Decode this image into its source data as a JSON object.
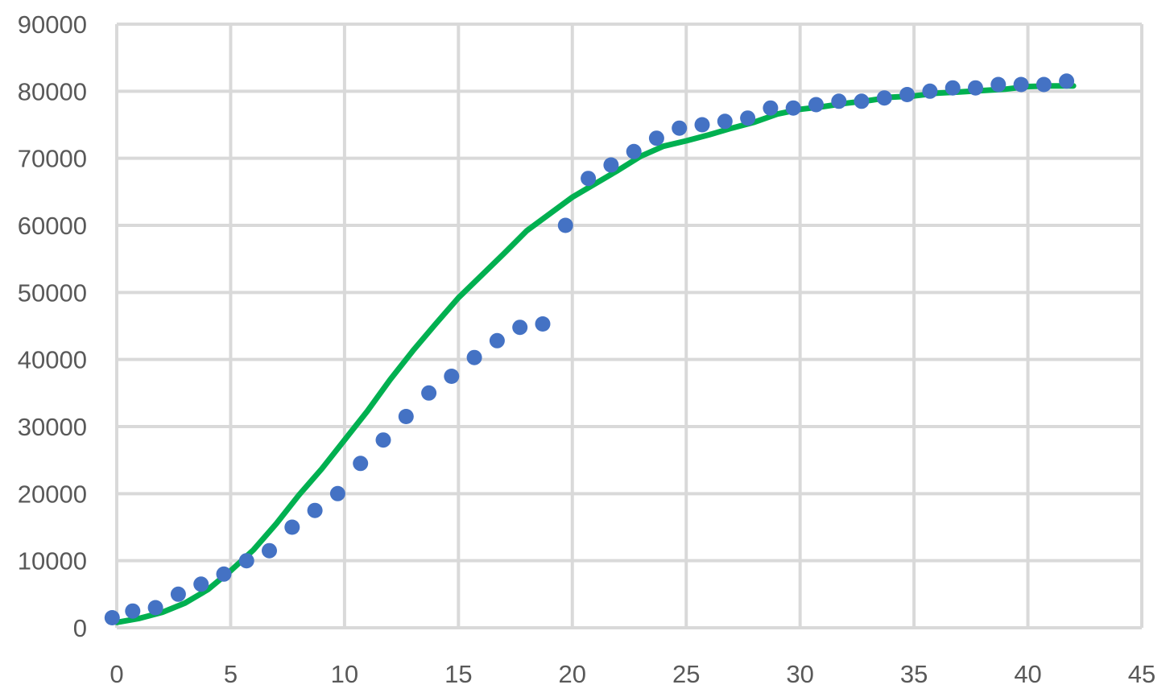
{
  "chart_data": {
    "type": "scatter",
    "title": "",
    "xlabel": "",
    "ylabel": "",
    "xlim": [
      0,
      45
    ],
    "ylim": [
      0,
      90000
    ],
    "grid": true,
    "legend": "none",
    "x_ticks": [
      "0",
      "5",
      "10",
      "15",
      "20",
      "25",
      "30",
      "35",
      "40",
      "45"
    ],
    "y_ticks": [
      "0",
      "10000",
      "20000",
      "30000",
      "40000",
      "50000",
      "60000",
      "70000",
      "80000",
      "90000"
    ],
    "series": [
      {
        "kind": "scatter",
        "color": "#4472C4",
        "points": [
          [
            -0.2,
            1500
          ],
          [
            0.7,
            2500
          ],
          [
            1.7,
            3000
          ],
          [
            2.7,
            5000
          ],
          [
            3.7,
            6500
          ],
          [
            4.7,
            8000
          ],
          [
            5.7,
            10000
          ],
          [
            6.7,
            11500
          ],
          [
            7.7,
            15000
          ],
          [
            8.7,
            17500
          ],
          [
            9.7,
            20000
          ],
          [
            10.7,
            24500
          ],
          [
            11.7,
            28000
          ],
          [
            12.7,
            31500
          ],
          [
            13.7,
            35000
          ],
          [
            14.7,
            37500
          ],
          [
            15.7,
            40300
          ],
          [
            16.7,
            42800
          ],
          [
            17.7,
            44800
          ],
          [
            18.7,
            45300
          ],
          [
            19.7,
            60000
          ],
          [
            20.7,
            67000
          ],
          [
            21.7,
            69000
          ],
          [
            22.7,
            71000
          ],
          [
            23.7,
            73000
          ],
          [
            24.7,
            74500
          ],
          [
            25.7,
            75000
          ],
          [
            26.7,
            75500
          ],
          [
            27.7,
            76000
          ],
          [
            28.7,
            77500
          ],
          [
            29.7,
            77500
          ],
          [
            30.7,
            78000
          ],
          [
            31.7,
            78500
          ],
          [
            32.7,
            78500
          ],
          [
            33.7,
            79000
          ],
          [
            34.7,
            79500
          ],
          [
            35.7,
            80000
          ],
          [
            36.7,
            80500
          ],
          [
            37.7,
            80500
          ],
          [
            38.7,
            81000
          ],
          [
            39.7,
            81000
          ],
          [
            40.7,
            81000
          ],
          [
            41.7,
            81500
          ]
        ]
      },
      {
        "kind": "line",
        "color": "#00B050",
        "points": [
          [
            0,
            800
          ],
          [
            1,
            1400
          ],
          [
            2,
            2300
          ],
          [
            3,
            3700
          ],
          [
            4,
            5700
          ],
          [
            5,
            8500
          ],
          [
            6,
            11600
          ],
          [
            7,
            15500
          ],
          [
            8,
            19800
          ],
          [
            9,
            23700
          ],
          [
            10,
            28000
          ],
          [
            11,
            32300
          ],
          [
            12,
            37000
          ],
          [
            13,
            41300
          ],
          [
            14,
            45300
          ],
          [
            15,
            49200
          ],
          [
            16,
            52500
          ],
          [
            17,
            55800
          ],
          [
            18,
            59200
          ],
          [
            19,
            61700
          ],
          [
            20,
            64200
          ],
          [
            21,
            66200
          ],
          [
            22,
            68200
          ],
          [
            23,
            70300
          ],
          [
            24,
            71800
          ],
          [
            25,
            72600
          ],
          [
            26,
            73500
          ],
          [
            27,
            74500
          ],
          [
            28,
            75400
          ],
          [
            29,
            76600
          ],
          [
            30,
            77300
          ],
          [
            31,
            77700
          ],
          [
            32,
            78200
          ],
          [
            33,
            78600
          ],
          [
            34,
            79100
          ],
          [
            35,
            79300
          ],
          [
            36,
            79700
          ],
          [
            37,
            79900
          ],
          [
            38,
            80100
          ],
          [
            39,
            80300
          ],
          [
            40,
            80700
          ],
          [
            41,
            80800
          ],
          [
            42,
            80800
          ]
        ]
      }
    ]
  }
}
